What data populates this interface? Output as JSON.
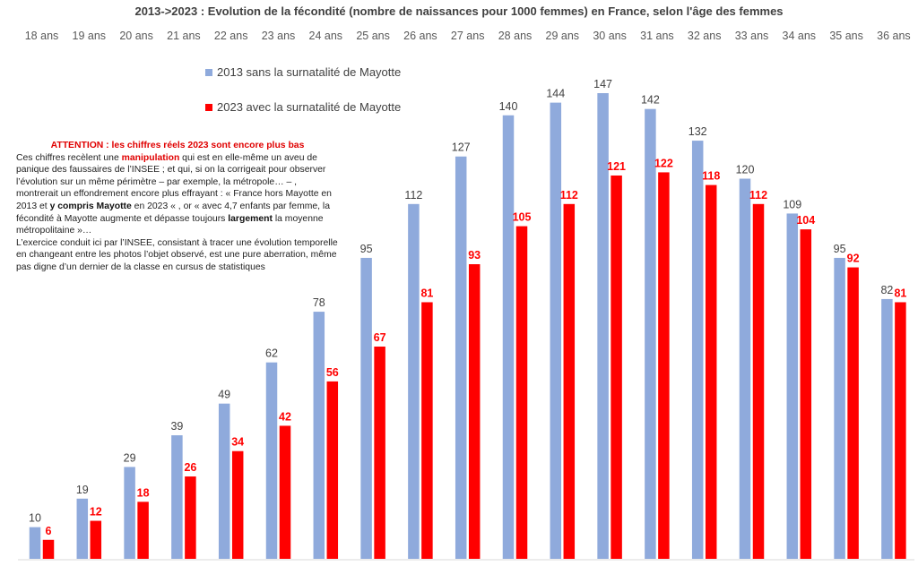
{
  "chart_data": {
    "type": "bar",
    "title": "2013->2023 : Evolution de la fécondité  (nombre de naissances pour 1000 femmes) en France, selon l'âge des femmes",
    "xlabel": "",
    "ylabel": "",
    "categories": [
      "18 ans",
      "19 ans",
      "20 ans",
      "21 ans",
      "22 ans",
      "23 ans",
      "24 ans",
      "25 ans",
      "26 ans",
      "27 ans",
      "28 ans",
      "29 ans",
      "30 ans",
      "31 ans",
      "32 ans",
      "33 ans",
      "34 ans",
      "35 ans",
      "36 ans"
    ],
    "category_axis_position": "top",
    "series": [
      {
        "name": "2013 sans la surnatalité de Mayotte",
        "color": "#8faadc",
        "values": [
          10,
          19,
          29,
          39,
          49,
          62,
          78,
          95,
          112,
          127,
          140,
          144,
          147,
          142,
          132,
          120,
          109,
          95,
          82
        ]
      },
      {
        "name": "2023 avec la surnatalité de Mayotte",
        "color": "#ff0000",
        "values": [
          6,
          12,
          18,
          26,
          34,
          42,
          56,
          67,
          81,
          93,
          105,
          112,
          121,
          122,
          118,
          112,
          104,
          92,
          81
        ]
      }
    ],
    "ylim": [
      0,
      150
    ],
    "grid": false,
    "legend_position": "top-left",
    "data_labels": true
  },
  "legend": {
    "items": [
      {
        "label": "2013 sans la surnatalité de Mayotte",
        "color": "#8faadc"
      },
      {
        "label": "2023 avec la surnatalité de Mayotte",
        "color": "#ff0000"
      }
    ]
  },
  "annotation": {
    "heading": "ATTENTION : les chiffres réels 2023 sont encore plus bas",
    "p1_a": "Ces chiffres recèlent une ",
    "p1_b": "manipulation",
    "p1_c": " qui est en elle-même un aveu de panique des faussaires de l’INSEE ; et qui, si on la corrigeait pour observer l’évolution sur un même périmètre – par exemple, la métropole… – , montrerait un effondrement encore plus effrayant : « France hors Mayotte en 2013 et ",
    "p1_d": "y compris Mayotte",
    "p1_e": " en 2023 « , or « avec 4,7 enfants par femme, la fécondité à Mayotte augmente et dépasse toujours ",
    "p1_f": "largement",
    "p1_g": " la moyenne métropolitaine »…",
    "p2": "L’exercice conduit ici par l’INSEE, consistant à tracer une évolution temporelle en changeant entre les photos l’objet observé, est une pure aberration, même pas digne d’un dernier de la classe en cursus de statistiques"
  }
}
